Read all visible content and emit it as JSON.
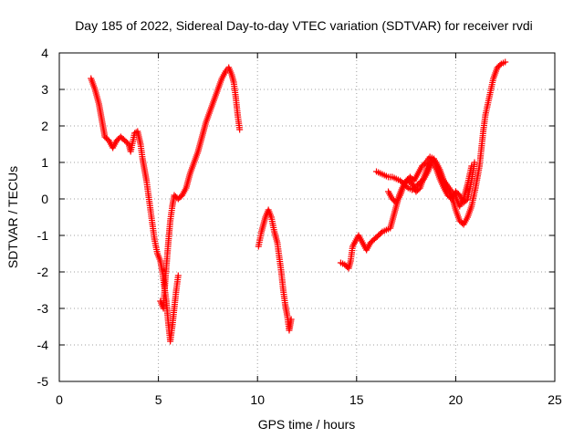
{
  "chart_data": {
    "type": "scatter",
    "title": "Day 185 of 2022, Sidereal Day-to-day VTEC variation (SDTVAR) for receiver rvdi",
    "xlabel": "GPS time / hours",
    "ylabel": "SDTVAR / TECUs",
    "xlim": [
      0,
      25
    ],
    "ylim": [
      -5,
      4
    ],
    "xticks": [
      "0",
      "5",
      "10",
      "15",
      "20",
      "25"
    ],
    "yticks": [
      "-5",
      "-4",
      "-3",
      "-2",
      "-1",
      "0",
      "1",
      "2",
      "3",
      "4"
    ],
    "grid": true,
    "marker": "plus",
    "color": "#ff0000",
    "series": [
      {
        "name": "SDTVAR",
        "segments": [
          [
            [
              1.6,
              3.3
            ],
            [
              1.8,
              3.0
            ],
            [
              2.0,
              2.6
            ],
            [
              2.1,
              2.3
            ],
            [
              2.2,
              2.0
            ],
            [
              2.3,
              1.7
            ],
            [
              2.5,
              1.6
            ],
            [
              2.7,
              1.4
            ],
            [
              2.9,
              1.6
            ],
            [
              3.1,
              1.7
            ],
            [
              3.3,
              1.6
            ],
            [
              3.5,
              1.5
            ],
            [
              3.6,
              1.3
            ],
            [
              3.8,
              1.8
            ],
            [
              3.95,
              1.85
            ],
            [
              4.1,
              1.5
            ],
            [
              4.2,
              1.1
            ],
            [
              4.3,
              0.8
            ],
            [
              4.4,
              0.5
            ],
            [
              4.5,
              0.1
            ],
            [
              4.6,
              -0.3
            ],
            [
              4.7,
              -0.7
            ],
            [
              4.8,
              -1.1
            ],
            [
              4.95,
              -1.5
            ],
            [
              5.1,
              -1.7
            ],
            [
              5.2,
              -2.0
            ],
            [
              5.3,
              -2.4
            ],
            [
              5.4,
              -2.8
            ],
            [
              5.5,
              -3.4
            ],
            [
              5.6,
              -3.9
            ],
            [
              5.7,
              -3.5
            ],
            [
              5.8,
              -3.0
            ],
            [
              5.9,
              -2.5
            ],
            [
              6.0,
              -2.1
            ]
          ],
          [
            [
              5.1,
              -2.8
            ],
            [
              5.25,
              -3.0
            ],
            [
              5.35,
              -2.2
            ],
            [
              5.5,
              -1.2
            ],
            [
              5.6,
              -0.6
            ],
            [
              5.7,
              -0.2
            ],
            [
              5.8,
              0.1
            ],
            [
              6.0,
              0.0
            ],
            [
              6.2,
              0.1
            ],
            [
              6.4,
              0.3
            ],
            [
              6.6,
              0.7
            ],
            [
              6.8,
              1.0
            ],
            [
              7.0,
              1.3
            ],
            [
              7.2,
              1.7
            ],
            [
              7.4,
              2.1
            ],
            [
              7.6,
              2.4
            ],
            [
              7.8,
              2.7
            ],
            [
              8.0,
              3.0
            ],
            [
              8.2,
              3.3
            ],
            [
              8.4,
              3.5
            ],
            [
              8.55,
              3.6
            ],
            [
              8.7,
              3.4
            ],
            [
              8.8,
              3.2
            ],
            [
              8.9,
              2.8
            ],
            [
              9.0,
              2.3
            ],
            [
              9.1,
              1.9
            ]
          ],
          [
            [
              10.05,
              -1.3
            ],
            [
              10.2,
              -0.9
            ],
            [
              10.3,
              -0.7
            ],
            [
              10.4,
              -0.5
            ],
            [
              10.55,
              -0.3
            ],
            [
              10.7,
              -0.5
            ],
            [
              10.85,
              -0.9
            ],
            [
              11.0,
              -1.2
            ],
            [
              11.1,
              -1.6
            ],
            [
              11.2,
              -2.0
            ],
            [
              11.3,
              -2.5
            ],
            [
              11.4,
              -2.9
            ],
            [
              11.5,
              -3.2
            ],
            [
              11.6,
              -3.6
            ],
            [
              11.7,
              -3.3
            ]
          ],
          [
            [
              14.2,
              -1.75
            ],
            [
              14.4,
              -1.8
            ],
            [
              14.6,
              -1.9
            ],
            [
              14.7,
              -1.7
            ],
            [
              14.8,
              -1.3
            ],
            [
              15.1,
              -1.0
            ],
            [
              15.3,
              -1.2
            ],
            [
              15.5,
              -1.4
            ],
            [
              15.7,
              -1.2
            ],
            [
              15.9,
              -1.1
            ],
            [
              16.1,
              -1.0
            ],
            [
              16.3,
              -0.9
            ],
            [
              16.5,
              -0.85
            ],
            [
              16.7,
              -0.8
            ],
            [
              16.85,
              -0.5
            ],
            [
              17.0,
              -0.2
            ],
            [
              17.15,
              0.1
            ],
            [
              17.3,
              0.3
            ],
            [
              17.5,
              0.5
            ],
            [
              17.7,
              0.6
            ],
            [
              17.9,
              0.5
            ],
            [
              18.1,
              0.7
            ],
            [
              18.3,
              0.9
            ],
            [
              18.5,
              1.0
            ],
            [
              18.7,
              1.15
            ],
            [
              18.9,
              1.1
            ],
            [
              19.1,
              0.9
            ],
            [
              19.3,
              0.6
            ],
            [
              19.5,
              0.4
            ],
            [
              19.7,
              0.2
            ],
            [
              19.9,
              -0.1
            ],
            [
              20.0,
              -0.3
            ],
            [
              20.2,
              -0.6
            ],
            [
              20.4,
              -0.7
            ],
            [
              20.6,
              -0.5
            ],
            [
              20.8,
              -0.2
            ],
            [
              21.0,
              0.3
            ],
            [
              21.2,
              0.9
            ],
            [
              21.3,
              1.4
            ],
            [
              21.4,
              1.9
            ],
            [
              21.5,
              2.3
            ],
            [
              21.7,
              2.8
            ],
            [
              21.9,
              3.3
            ],
            [
              22.1,
              3.6
            ],
            [
              22.3,
              3.7
            ],
            [
              22.5,
              3.75
            ]
          ],
          [
            [
              16.0,
              0.75
            ],
            [
              16.2,
              0.7
            ],
            [
              16.4,
              0.65
            ],
            [
              16.6,
              0.6
            ],
            [
              16.8,
              0.6
            ],
            [
              17.0,
              0.55
            ],
            [
              17.2,
              0.5
            ],
            [
              17.4,
              0.4
            ],
            [
              17.6,
              0.3
            ],
            [
              17.8,
              0.25
            ],
            [
              18.0,
              0.35
            ],
            [
              18.2,
              0.45
            ],
            [
              18.4,
              0.55
            ],
            [
              18.6,
              0.75
            ],
            [
              18.8,
              1.0
            ],
            [
              19.0,
              0.85
            ],
            [
              19.2,
              0.55
            ],
            [
              19.4,
              0.3
            ],
            [
              19.6,
              0.1
            ],
            [
              19.8,
              0.0
            ],
            [
              20.0,
              0.2
            ],
            [
              20.2,
              0.1
            ],
            [
              20.4,
              -0.1
            ],
            [
              20.6,
              0.0
            ],
            [
              20.8,
              0.5
            ],
            [
              20.95,
              1.0
            ]
          ],
          [
            [
              16.6,
              0.2
            ],
            [
              16.8,
              0.0
            ],
            [
              17.0,
              -0.1
            ],
            [
              17.2,
              0.1
            ],
            [
              17.4,
              0.4
            ],
            [
              17.6,
              0.5
            ],
            [
              17.8,
              0.4
            ],
            [
              18.0,
              0.2
            ],
            [
              18.2,
              0.3
            ],
            [
              18.4,
              0.6
            ],
            [
              18.6,
              0.9
            ],
            [
              18.8,
              1.1
            ],
            [
              19.0,
              1.0
            ],
            [
              19.2,
              0.8
            ],
            [
              19.4,
              0.5
            ],
            [
              19.6,
              0.35
            ],
            [
              19.8,
              0.2
            ],
            [
              20.0,
              0.05
            ],
            [
              20.2,
              -0.2
            ],
            [
              20.4,
              0.0
            ],
            [
              20.6,
              0.4
            ],
            [
              20.8,
              0.9
            ]
          ]
        ]
      }
    ]
  }
}
